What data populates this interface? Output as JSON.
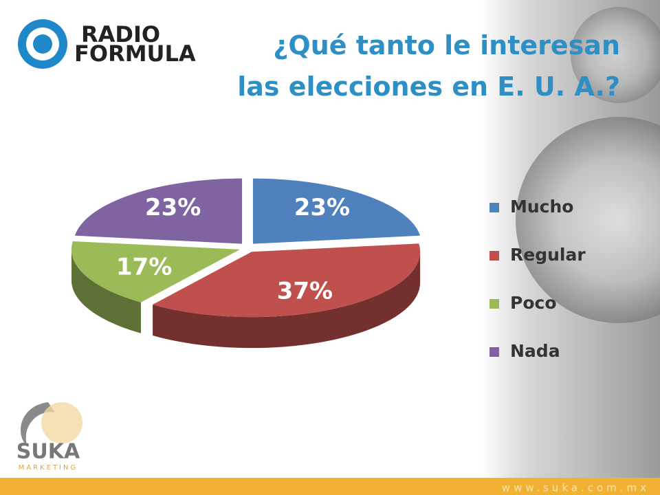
{
  "chart_data": {
    "type": "pie",
    "title": "¿Qué tanto le interesan\nlas elecciones en E. U. A.?",
    "categories": [
      "Mucho",
      "Regular",
      "Poco",
      "Nada"
    ],
    "values": [
      23,
      37,
      17,
      23
    ],
    "value_labels": [
      "23%",
      "37%",
      "17%",
      "23%"
    ],
    "colors": [
      "#4f81bd",
      "#c0504d",
      "#9bbb59",
      "#8064a2"
    ],
    "legend": "right"
  },
  "branding": {
    "logo_top": [
      "RADIO",
      "FORMULA"
    ],
    "logo_bottom": [
      "SUKA",
      "MARKETING"
    ],
    "footer": "www.suka.com.mx"
  }
}
